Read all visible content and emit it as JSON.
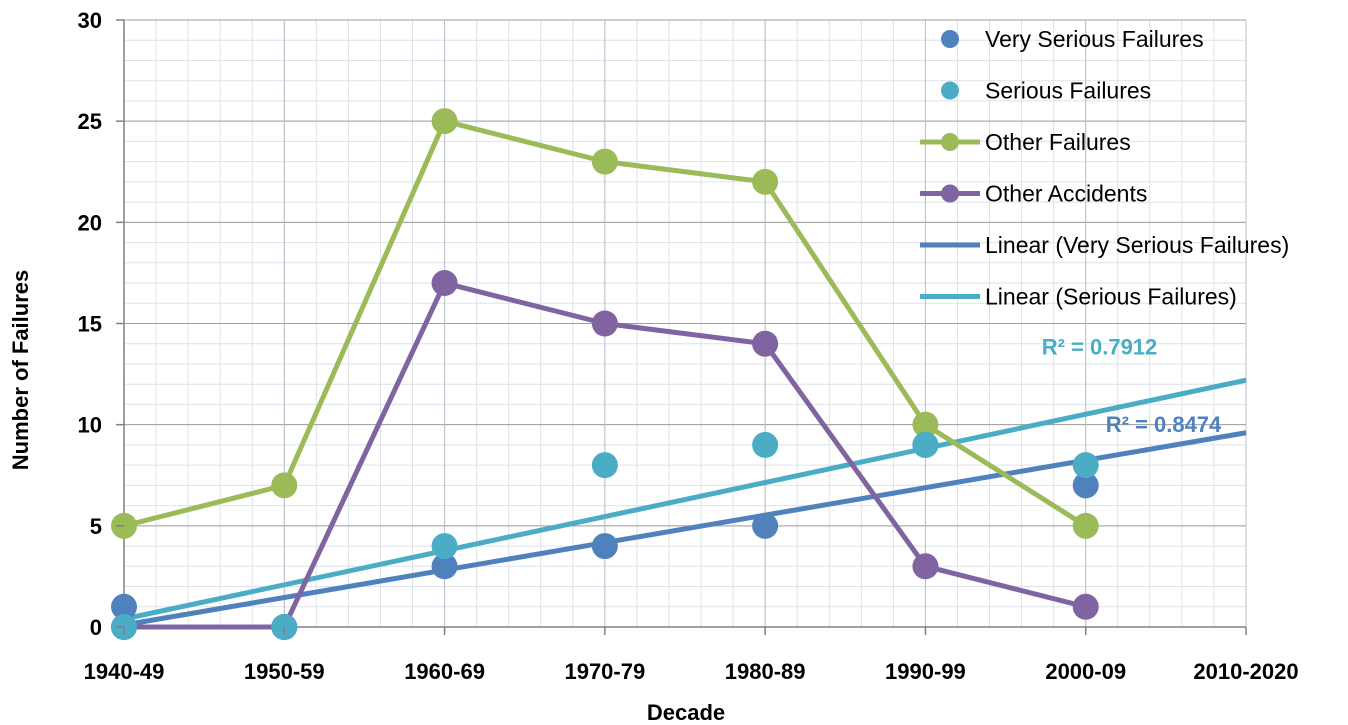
{
  "chart_data": {
    "type": "line",
    "title": "",
    "xlabel": "Decade",
    "ylabel": "Number of Failures",
    "categories": [
      "1940-49",
      "1950-59",
      "1960-69",
      "1970-79",
      "1980-89",
      "1990-99",
      "2000-09",
      "2010-2020"
    ],
    "ylim": [
      0,
      30
    ],
    "yticks": [
      0,
      5,
      10,
      15,
      20,
      25,
      30
    ],
    "grid": true,
    "legend_position": "top-right",
    "series": [
      {
        "name": "Very Serious Failures",
        "kind": "scatter",
        "color": "#4f81bd",
        "values": [
          1,
          0,
          3,
          4,
          5,
          9,
          7,
          null
        ]
      },
      {
        "name": "Serious Failures",
        "kind": "scatter",
        "color": "#4bacc6",
        "values": [
          0,
          0,
          4,
          8,
          9,
          9,
          8,
          null
        ]
      },
      {
        "name": "Other Failures",
        "kind": "line-markers",
        "color": "#9bbb59",
        "values": [
          5,
          7,
          25,
          23,
          22,
          10,
          5,
          null
        ]
      },
      {
        "name": "Other Accidents",
        "kind": "line-markers",
        "color": "#8064a2",
        "values": [
          0,
          0,
          17,
          15,
          14,
          3,
          1,
          null
        ]
      },
      {
        "name": "Linear (Very Serious Failures)",
        "kind": "trendline",
        "color": "#4f81bd",
        "trend_endpoints": [
          0.1,
          9.6
        ],
        "r2_label": "R² = 0.8474"
      },
      {
        "name": "Linear (Serious Failures)",
        "kind": "trendline",
        "color": "#4bacc6",
        "trend_endpoints": [
          0.4,
          12.2
        ],
        "r2_label": "R² = 0.7912"
      }
    ]
  }
}
